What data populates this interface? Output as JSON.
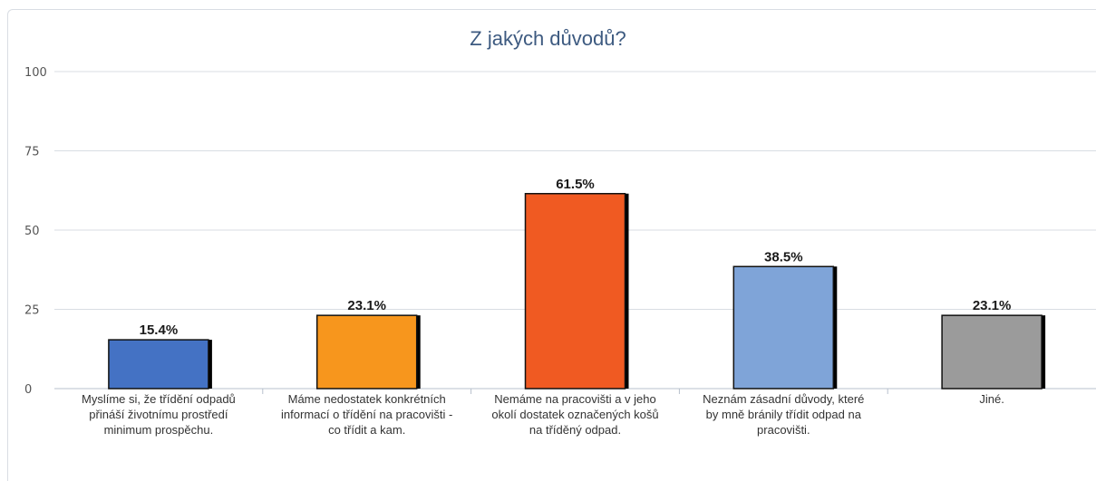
{
  "chart_data": {
    "type": "bar",
    "title": "Z jakých důvodů?",
    "categories": [
      "Myslíme si, že třídění odpadů přináší životnímu prostředí minimum prospěchu.",
      "Máme nedostatek konkrétních informací o třídění na pracovišti - co třídit a kam.",
      "Nemáme na pracovišti a v jeho okolí dostatek označených košů na tříděný odpad.",
      "Neznám zásadní důvody, které by mně bránily třídit odpad na pracovišti.",
      "Jiné."
    ],
    "values": [
      15.4,
      23.1,
      61.5,
      38.5,
      23.1
    ],
    "value_labels": [
      "15.4%",
      "23.1%",
      "61.5%",
      "38.5%",
      "23.1%"
    ],
    "colors": [
      "#4472c4",
      "#f7961d",
      "#f05a22",
      "#7fa4d8",
      "#9b9b9b"
    ],
    "ylim": [
      0,
      100
    ],
    "yticks": [
      "0",
      "25",
      "50",
      "75",
      "100"
    ],
    "grid": true,
    "legend": "none"
  }
}
